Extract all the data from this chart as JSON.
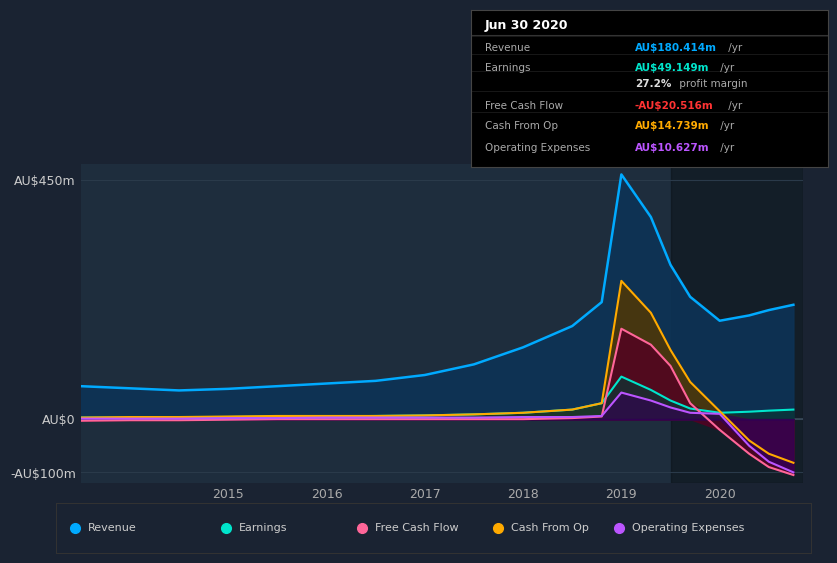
{
  "bg_color": "#1a2332",
  "plot_bg_color": "#1e2d3d",
  "ylabel_top": "AU$450m",
  "ylabel_zero": "AU$0",
  "ylabel_neg": "-AU$100m",
  "xlim": [
    2013.5,
    2020.85
  ],
  "ylim": [
    -120,
    480
  ],
  "yticks": [
    -100,
    0,
    450
  ],
  "xtick_labels": [
    "2015",
    "2016",
    "2017",
    "2018",
    "2019",
    "2020"
  ],
  "xtick_positions": [
    2015,
    2016,
    2017,
    2018,
    2019,
    2020
  ],
  "series": {
    "revenue": {
      "color": "#00aaff",
      "fill_color": "#0d3356",
      "label": "Revenue"
    },
    "earnings": {
      "color": "#00e5cc",
      "fill_color": "#0a3535",
      "label": "Earnings"
    },
    "free_cash_flow": {
      "color": "#ff6699",
      "fill_color": "#550022",
      "label": "Free Cash Flow"
    },
    "cash_from_op": {
      "color": "#ffaa00",
      "fill_color": "#553800",
      "label": "Cash From Op"
    },
    "operating_expenses": {
      "color": "#bb55ff",
      "fill_color": "#330055",
      "label": "Operating Expenses"
    }
  },
  "tooltip_date": "Jun 30 2020",
  "x_data": [
    2013.5,
    2014.0,
    2014.5,
    2015.0,
    2015.5,
    2016.0,
    2016.5,
    2017.0,
    2017.5,
    2018.0,
    2018.5,
    2018.8,
    2019.0,
    2019.3,
    2019.5,
    2019.7,
    2020.0,
    2020.3,
    2020.5,
    2020.75
  ],
  "revenue": [
    62,
    58,
    54,
    57,
    62,
    67,
    72,
    83,
    103,
    135,
    175,
    220,
    460,
    380,
    290,
    230,
    185,
    195,
    205,
    215
  ],
  "earnings": [
    3,
    3,
    3,
    4,
    5,
    5,
    6,
    7,
    9,
    12,
    18,
    30,
    80,
    55,
    35,
    20,
    12,
    14,
    16,
    18
  ],
  "free_cash_flow": [
    -3,
    -2,
    -2,
    -1,
    0,
    0,
    0,
    0,
    0,
    0,
    2,
    5,
    170,
    140,
    100,
    30,
    -20,
    -65,
    -90,
    -105
  ],
  "cash_from_op": [
    3,
    4,
    4,
    5,
    6,
    6,
    6,
    7,
    9,
    12,
    18,
    30,
    260,
    200,
    130,
    70,
    15,
    -40,
    -65,
    -82
  ],
  "operating_expenses": [
    1,
    1,
    1,
    2,
    2,
    3,
    3,
    3,
    3,
    4,
    4,
    6,
    50,
    35,
    22,
    12,
    10,
    -50,
    -80,
    -100
  ],
  "legend_items": [
    {
      "label": "Revenue",
      "color": "#00aaff"
    },
    {
      "label": "Earnings",
      "color": "#00e5cc"
    },
    {
      "label": "Free Cash Flow",
      "color": "#ff6699"
    },
    {
      "label": "Cash From Op",
      "color": "#ffaa00"
    },
    {
      "label": "Operating Expenses",
      "color": "#bb55ff"
    }
  ]
}
